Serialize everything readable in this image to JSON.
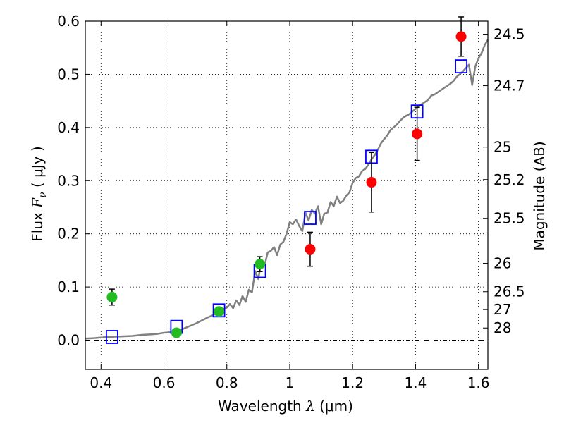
{
  "chart_data": {
    "type": "scatter",
    "xlabel_prefix": "Wavelength",
    "xlabel_symbol": "λ",
    "xlabel_unit": "(μm)",
    "ylabel_prefix": "Flux",
    "ylabel_symbol": "F",
    "ylabel_subscript": "ν",
    "ylabel_unit": "( μJy )",
    "y2label": "Magnitude (AB)",
    "xlim": [
      0.35,
      1.63
    ],
    "ylim": [
      -0.055,
      0.6
    ],
    "grid": true,
    "x_ticks": [
      0.4,
      0.6,
      0.8,
      1.0,
      1.2,
      1.4,
      1.6
    ],
    "x_tick_labels": [
      "0.4",
      "0.6",
      "0.8",
      "1",
      "1.2",
      "1.4",
      "1.6"
    ],
    "y_ticks": [
      0.0,
      0.1,
      0.2,
      0.3,
      0.4,
      0.5,
      0.6
    ],
    "y_tick_labels": [
      "0.0",
      "0.1",
      "0.2",
      "0.3",
      "0.4",
      "0.5",
      "0.6"
    ],
    "y2_ticks": [
      {
        "label": "24.5",
        "flux": 0.5754
      },
      {
        "label": "24.7",
        "flux": 0.4786
      },
      {
        "label": "25",
        "flux": 0.3631
      },
      {
        "label": "25.2",
        "flux": 0.302
      },
      {
        "label": "25.5",
        "flux": 0.2291
      },
      {
        "label": "26",
        "flux": 0.1445
      },
      {
        "label": "26.5",
        "flux": 0.0912
      },
      {
        "label": "27",
        "flux": 0.0575
      },
      {
        "label": "28",
        "flux": 0.0229
      }
    ],
    "series": [
      {
        "kind": "model_spectrum",
        "color": "#808080",
        "x": [
          0.35,
          0.38,
          0.42,
          0.46,
          0.5,
          0.53,
          0.56,
          0.58,
          0.6,
          0.62,
          0.64,
          0.66,
          0.68,
          0.7,
          0.72,
          0.74,
          0.76,
          0.78,
          0.8,
          0.81,
          0.82,
          0.83,
          0.84,
          0.85,
          0.86,
          0.87,
          0.88,
          0.89,
          0.9,
          0.91,
          0.92,
          0.93,
          0.94,
          0.95,
          0.96,
          0.97,
          0.98,
          0.99,
          1.0,
          1.01,
          1.02,
          1.03,
          1.04,
          1.05,
          1.06,
          1.07,
          1.08,
          1.09,
          1.1,
          1.11,
          1.12,
          1.13,
          1.14,
          1.15,
          1.16,
          1.17,
          1.18,
          1.19,
          1.2,
          1.21,
          1.22,
          1.23,
          1.24,
          1.25,
          1.26,
          1.27,
          1.28,
          1.29,
          1.3,
          1.31,
          1.32,
          1.33,
          1.34,
          1.35,
          1.36,
          1.37,
          1.38,
          1.39,
          1.4,
          1.41,
          1.42,
          1.43,
          1.44,
          1.45,
          1.46,
          1.47,
          1.48,
          1.49,
          1.5,
          1.51,
          1.52,
          1.53,
          1.54,
          1.55,
          1.56,
          1.57,
          1.58,
          1.59,
          1.6,
          1.61,
          1.62,
          1.63
        ],
        "y": [
          0.003,
          0.004,
          0.006,
          0.007,
          0.008,
          0.01,
          0.011,
          0.012,
          0.014,
          0.015,
          0.018,
          0.021,
          0.026,
          0.031,
          0.037,
          0.043,
          0.048,
          0.056,
          0.061,
          0.068,
          0.06,
          0.075,
          0.066,
          0.083,
          0.072,
          0.095,
          0.09,
          0.13,
          0.115,
          0.15,
          0.14,
          0.165,
          0.168,
          0.175,
          0.16,
          0.18,
          0.185,
          0.2,
          0.222,
          0.218,
          0.227,
          0.215,
          0.205,
          0.24,
          0.225,
          0.245,
          0.238,
          0.252,
          0.218,
          0.238,
          0.24,
          0.26,
          0.252,
          0.27,
          0.258,
          0.262,
          0.272,
          0.278,
          0.296,
          0.305,
          0.308,
          0.318,
          0.322,
          0.33,
          0.34,
          0.348,
          0.358,
          0.37,
          0.378,
          0.385,
          0.395,
          0.4,
          0.405,
          0.412,
          0.418,
          0.422,
          0.425,
          0.43,
          0.435,
          0.44,
          0.444,
          0.448,
          0.452,
          0.46,
          0.462,
          0.466,
          0.47,
          0.474,
          0.478,
          0.482,
          0.487,
          0.495,
          0.5,
          0.505,
          0.512,
          0.518,
          0.48,
          0.515,
          0.53,
          0.54,
          0.555,
          0.565
        ]
      },
      {
        "kind": "model_photometry",
        "marker": "open-square",
        "color": "#0000ff",
        "x": [
          0.435,
          0.64,
          0.775,
          0.905,
          1.065,
          1.26,
          1.405,
          1.545
        ],
        "y": [
          0.006,
          0.025,
          0.056,
          0.13,
          0.23,
          0.345,
          0.43,
          0.515
        ]
      },
      {
        "kind": "observed_optical",
        "marker": "filled-circle",
        "color": "#22bb22",
        "x": [
          0.435,
          0.64,
          0.775,
          0.905
        ],
        "y": [
          0.081,
          0.014,
          0.054,
          0.143
        ],
        "yerr": [
          0.015,
          0.006,
          0.007,
          0.014
        ]
      },
      {
        "kind": "observed_nir",
        "marker": "filled-circle",
        "color": "#ff0000",
        "x": [
          1.065,
          1.26,
          1.405,
          1.545
        ],
        "y": [
          0.171,
          0.297,
          0.388,
          0.571
        ],
        "yerr": [
          0.032,
          0.056,
          0.05,
          0.037
        ]
      }
    ]
  }
}
